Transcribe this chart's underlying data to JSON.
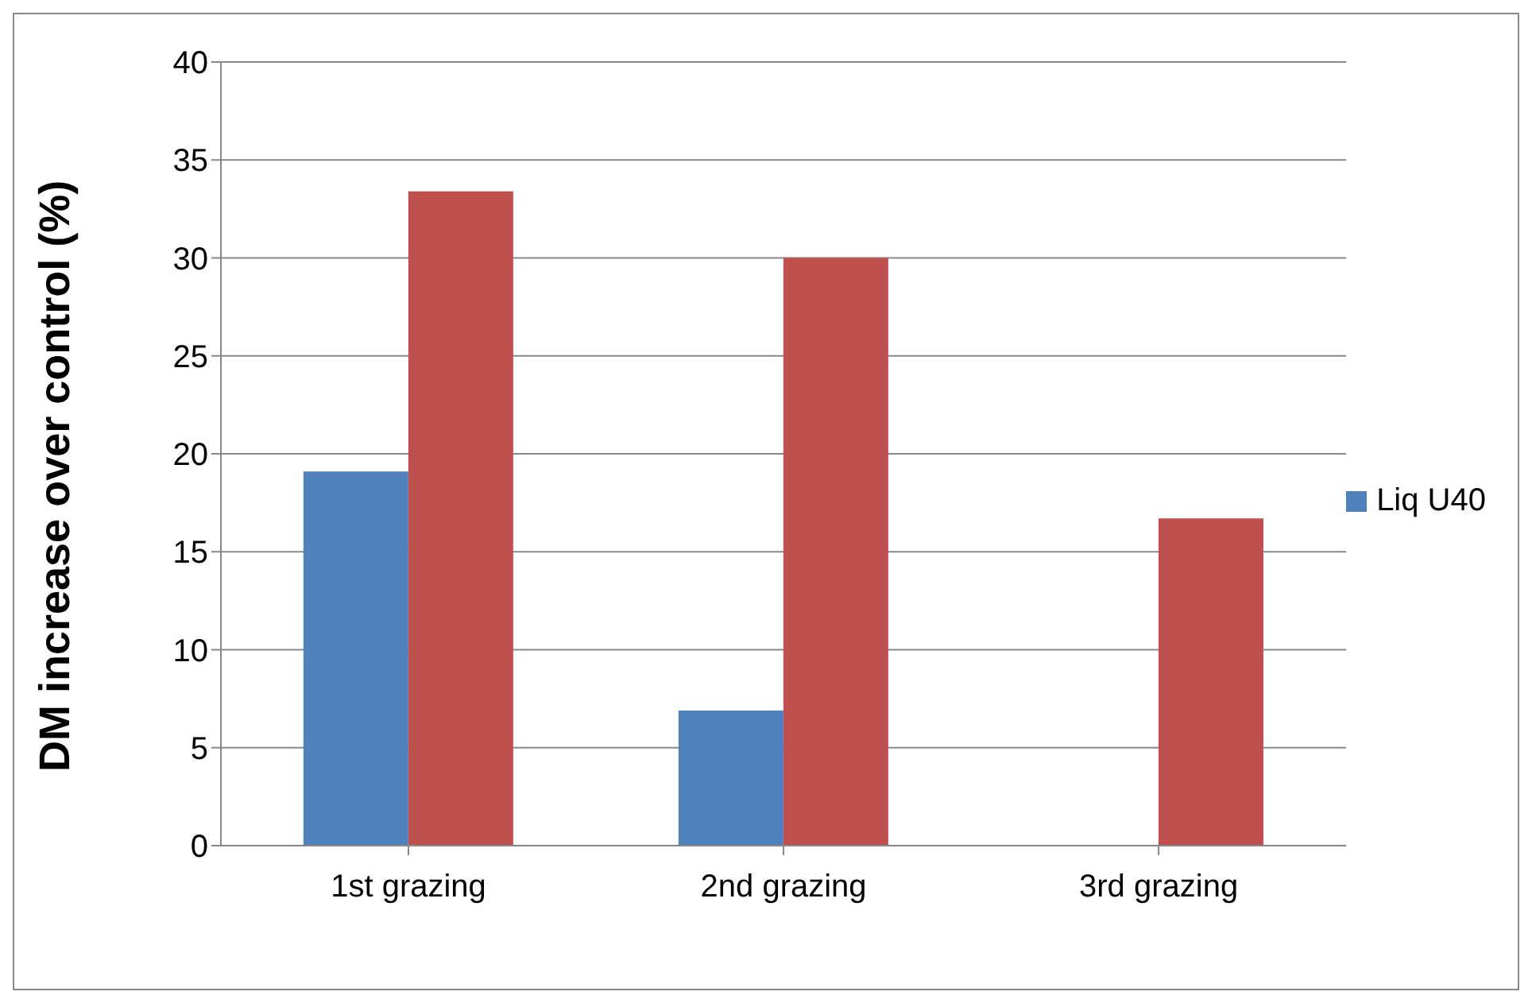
{
  "chart_data": {
    "type": "bar",
    "ylabel": "DM increase over control (%)",
    "categories": [
      "1st grazing",
      "2nd grazing",
      "3rd grazing"
    ],
    "series": [
      {
        "name": "Liq U40",
        "color": "#4f81bd",
        "values": [
          19.1,
          6.9,
          null
        ]
      },
      {
        "color": "#c0504d",
        "values": [
          33.4,
          30.0,
          16.7
        ]
      }
    ],
    "ylim": [
      0,
      40
    ],
    "yticks": [
      0,
      5,
      10,
      15,
      20,
      25,
      30,
      35,
      40
    ],
    "grid": "y",
    "legend": "right"
  }
}
